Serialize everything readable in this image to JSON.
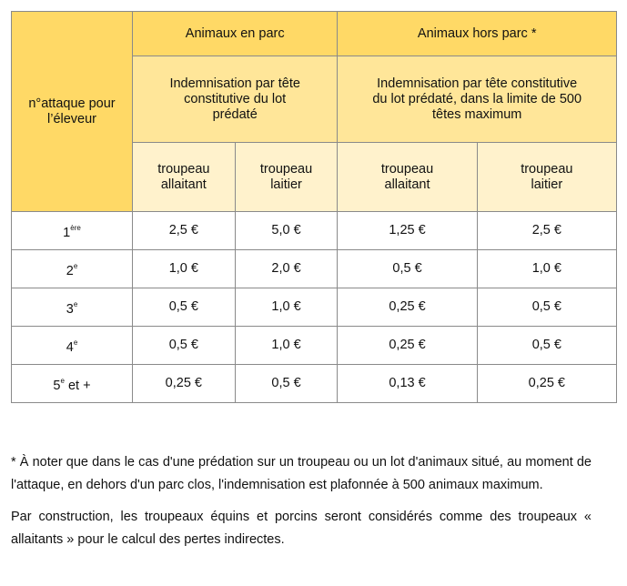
{
  "table": {
    "row_header": "n°attaque pour l’éleveur",
    "groups": [
      {
        "label": "Animaux en parc",
        "sub": "Indemnisation par tête constitutive du lot prédaté"
      },
      {
        "label": "Animaux hors parc *",
        "sub": "Indemnisation par tête constitutive du lot prédaté, dans la limite de 500 têtes maximum"
      }
    ],
    "columns": [
      "troupeau allaitant",
      "troupeau laitier",
      "troupeau allaitant",
      "troupeau laitier"
    ],
    "rows": [
      {
        "num": "1",
        "sup": "ère",
        "suffix": "",
        "values": [
          "2,5 €",
          "5,0 €",
          "1,25 €",
          "2,5 €"
        ]
      },
      {
        "num": "2",
        "sup": "e",
        "suffix": "",
        "values": [
          "1,0 €",
          "2,0 €",
          "0,5 €",
          "1,0 €"
        ]
      },
      {
        "num": "3",
        "sup": "e",
        "suffix": "",
        "values": [
          "0,5 €",
          "1,0 €",
          "0,25 €",
          "0,5 €"
        ]
      },
      {
        "num": "4",
        "sup": "e",
        "suffix": "",
        "values": [
          "0,5 €",
          "1,0 €",
          "0,25 €",
          "0,5 €"
        ]
      },
      {
        "num": "5",
        "sup": "e",
        "suffix": " et +",
        "values": [
          "0,25 €",
          "0,5 €",
          "0,13 €",
          "0,25 €"
        ]
      }
    ]
  },
  "notes": [
    "* À noter que dans le cas d'une prédation sur un troupeau ou un lot d'animaux situé, au moment de l'attaque, en dehors d'un parc clos, l'indemnisation est plafonnée à 500 animaux maximum.",
    "Par construction, les troupeaux équins et porcins seront considérés comme des troupeaux « allaitants » pour le calcul des pertes indirectes."
  ],
  "colors": {
    "header_dark": "#FFD966",
    "header_mid": "#FFE699",
    "header_light": "#FFF2CC"
  }
}
